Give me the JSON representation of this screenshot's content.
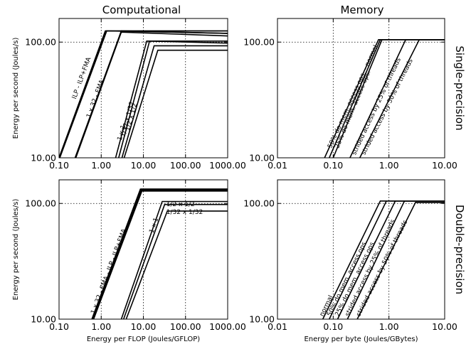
{
  "figure": {
    "column_titles": [
      "Computational",
      "Memory"
    ],
    "row_titles": [
      "Single-precision",
      "Double-precision"
    ]
  },
  "chart_data": [
    {
      "type": "line",
      "id": "comp-single",
      "x_scale": "log",
      "y_scale": "log",
      "xlim": [
        0.1,
        1000
      ],
      "ylim": [
        10,
        160
      ],
      "xticks": [
        0.1,
        1,
        10,
        100,
        1000
      ],
      "xtick_labels": [
        "0.10",
        "1.00",
        "10.00",
        "100.00",
        "1000.00"
      ],
      "yticks": [
        10,
        100
      ],
      "ytick_labels": [
        "10.00",
        "100.00"
      ],
      "xlabel": "",
      "ylabel": "Energy per second (Joules/s)",
      "grid": true,
      "series": [
        {
          "name": "ILP - ILP+FMA",
          "x": [
            0.1,
            1.25,
            1000
          ],
          "y": [
            10,
            125,
            125
          ],
          "label_x": 0.25,
          "label_y": 32
        },
        {
          "name": "",
          "x": [
            0.1,
            1.3,
            1000
          ],
          "y": [
            10,
            125,
            125
          ]
        },
        {
          "name": "",
          "x": [
            0.1,
            1.35,
            1000
          ],
          "y": [
            9.6,
            125,
            119
          ]
        },
        {
          "name": "1 x 32 - FMA",
          "x": [
            0.24,
            3.0,
            1000
          ],
          "y": [
            10,
            125,
            119
          ],
          "label_x": 0.55,
          "label_y": 22
        },
        {
          "name": "",
          "x": [
            0.25,
            3.0,
            1000
          ],
          "y": [
            10,
            122,
            113
          ]
        },
        {
          "name": "1 x 1",
          "x": [
            2.2,
            12,
            1000
          ],
          "y": [
            10,
            102,
            102
          ],
          "label_x": 3.0,
          "label_y": 14
        },
        {
          "name": "1/32 x 1/32",
          "x": [
            2.6,
            14,
            1000
          ],
          "y": [
            10,
            102,
            98
          ],
          "label_x": 3.6,
          "label_y": 15
        },
        {
          "name": "1/2 x 1/2",
          "x": [
            3.1,
            18,
            1000
          ],
          "y": [
            10,
            93,
            93
          ],
          "label_x": 4.6,
          "label_y": 17
        },
        {
          "name": "",
          "x": [
            3.5,
            22,
            1000
          ],
          "y": [
            10,
            85,
            85
          ]
        }
      ]
    },
    {
      "type": "line",
      "id": "mem-single",
      "x_scale": "log",
      "y_scale": "log",
      "xlim": [
        0.01,
        10
      ],
      "ylim": [
        10,
        160
      ],
      "xticks": [
        0.01,
        0.1,
        1,
        10
      ],
      "xtick_labels": [
        "0.01",
        "0.10",
        "1.00",
        "10.00"
      ],
      "yticks": [
        10,
        100
      ],
      "ytick_labels": [
        "10.00",
        "100.00"
      ],
      "xlabel": "",
      "ylabel": "",
      "grid": true,
      "series": [
        {
          "name": "50% do mem. access ops. - normal",
          "x": [
            0.07,
            0.65,
            10
          ],
          "y": [
            10,
            105,
            105
          ],
          "label_x": 0.092,
          "label_y": 12
        },
        {
          "name": "",
          "x": [
            0.085,
            0.7,
            10
          ],
          "y": [
            10,
            105,
            105
          ]
        },
        {
          "name": "25% do mem. access ops.",
          "x": [
            0.1,
            0.75,
            10
          ],
          "y": [
            10,
            105,
            105
          ],
          "label_x": 0.125,
          "label_y": 12
        },
        {
          "name": "strided access by 25% of threads",
          "x": [
            0.2,
            2.0,
            10
          ],
          "y": [
            10,
            105,
            105
          ],
          "label_x": 0.25,
          "label_y": 10.5
        },
        {
          "name": "strided access by 50% of threads",
          "x": [
            0.3,
            3.5,
            10
          ],
          "y": [
            10,
            105,
            105
          ],
          "label_x": 0.37,
          "label_y": 10.5
        }
      ]
    },
    {
      "type": "line",
      "id": "comp-double",
      "x_scale": "log",
      "y_scale": "log",
      "xlim": [
        0.1,
        1000
      ],
      "ylim": [
        10,
        160
      ],
      "xticks": [
        0.1,
        1,
        10,
        100,
        1000
      ],
      "xtick_labels": [
        "0.10",
        "1.00",
        "10.00",
        "100.00",
        "1000.00"
      ],
      "yticks": [
        10,
        100
      ],
      "ytick_labels": [
        "10.00",
        "100.00"
      ],
      "xlabel": "Energy per FLOP (Joules/GFLOP)",
      "ylabel": "Energy per second (Joules/s)",
      "grid": true,
      "series": [
        {
          "name": "1 x 32 - FMA - ILP - ILP+FMA",
          "x": [
            0.6,
            8.5,
            1000
          ],
          "y": [
            10,
            133,
            133
          ],
          "label_x": 0.7,
          "label_y": 11
        },
        {
          "name": "",
          "x": [
            0.62,
            8.8,
            1000
          ],
          "y": [
            10,
            133,
            133
          ]
        },
        {
          "name": "",
          "x": [
            0.64,
            9.0,
            1000
          ],
          "y": [
            10,
            130,
            130
          ]
        },
        {
          "name": "",
          "x": [
            0.66,
            9.2,
            1000
          ],
          "y": [
            10,
            128,
            128
          ]
        },
        {
          "name": "1 x 1",
          "x": [
            3.0,
            28,
            1000
          ],
          "y": [
            10,
            104,
            104
          ],
          "label_x": 17,
          "label_y": 55
        },
        {
          "name": "1/2 x 1/2",
          "x": [
            3.4,
            32,
            1000
          ],
          "y": [
            10,
            98,
            98
          ],
          "label_x": 35,
          "label_y": 95
        },
        {
          "name": "1/32 x 1/32",
          "x": [
            3.9,
            37,
            1000
          ],
          "y": [
            10,
            86,
            86
          ],
          "label_x": 35,
          "label_y": 81
        }
      ]
    },
    {
      "type": "line",
      "id": "mem-double",
      "x_scale": "log",
      "y_scale": "log",
      "xlim": [
        0.01,
        10
      ],
      "ylim": [
        10,
        160
      ],
      "xticks": [
        0.01,
        0.1,
        1,
        10
      ],
      "xtick_labels": [
        "0.01",
        "0.10",
        "1.00",
        "10.00"
      ],
      "yticks": [
        10,
        100
      ],
      "ytick_labels": [
        "10.00",
        "100.00"
      ],
      "xlabel": "Energy per byte (Joules/GBytes)",
      "ylabel": "",
      "grid": true,
      "series": [
        {
          "name": "normal",
          "x": [
            0.065,
            0.7,
            10
          ],
          "y": [
            10,
            105,
            105
          ],
          "label_x": 0.066,
          "label_y": 10.5
        },
        {
          "name": "50% do mem. access ops.",
          "x": [
            0.085,
            0.9,
            10
          ],
          "y": [
            10,
            105,
            105
          ],
          "label_x": 0.09,
          "label_y": 10.5
        },
        {
          "name": "25% do mem. access ops.",
          "x": [
            0.12,
            1.3,
            10
          ],
          "y": [
            10,
            105,
            105
          ],
          "label_x": 0.125,
          "label_y": 10.5
        },
        {
          "name": "strided access by 25% of threads",
          "x": [
            0.18,
            1.9,
            10
          ],
          "y": [
            10,
            105,
            105
          ],
          "label_x": 0.19,
          "label_y": 10.5
        },
        {
          "name": "strided access by 50% of threads",
          "x": [
            0.27,
            3.0,
            10
          ],
          "y": [
            10,
            102,
            102
          ],
          "label_x": 0.3,
          "label_y": 10.5
        }
      ]
    }
  ]
}
